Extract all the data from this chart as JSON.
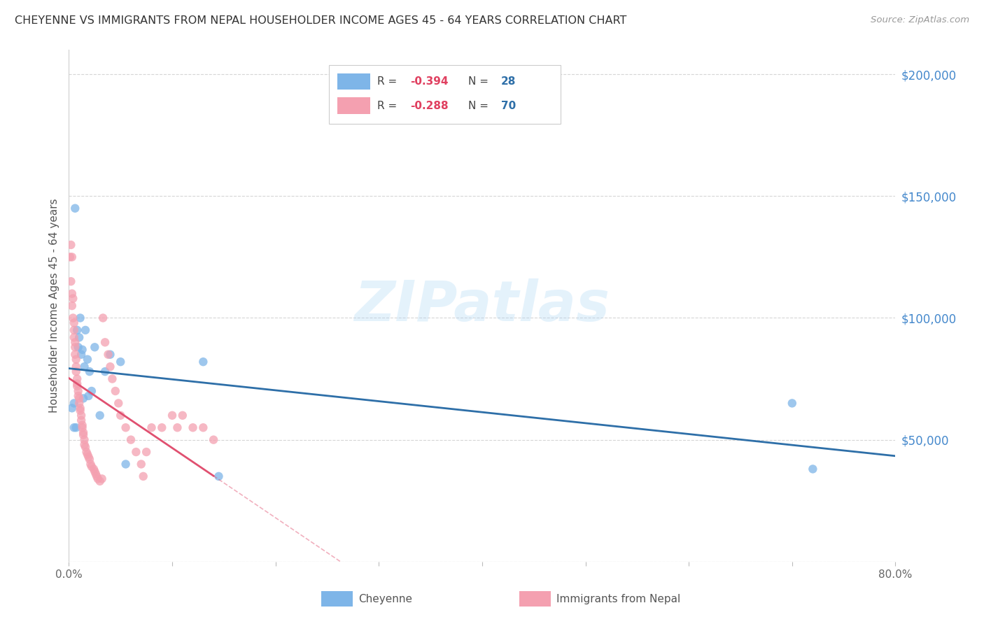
{
  "title": "CHEYENNE VS IMMIGRANTS FROM NEPAL HOUSEHOLDER INCOME AGES 45 - 64 YEARS CORRELATION CHART",
  "source": "Source: ZipAtlas.com",
  "ylabel": "Householder Income Ages 45 - 64 years",
  "watermark": "ZIPatlas",
  "xmin": 0.0,
  "xmax": 0.8,
  "ymin": 0,
  "ymax": 210000,
  "ytick_positions": [
    0,
    50000,
    100000,
    150000,
    200000
  ],
  "ytick_labels": [
    "",
    "$50,000",
    "$100,000",
    "$150,000",
    "$200,000"
  ],
  "xtick_positions": [
    0.0,
    0.1,
    0.2,
    0.3,
    0.4,
    0.5,
    0.6,
    0.7,
    0.8
  ],
  "xtick_labels": [
    "0.0%",
    "",
    "",
    "",
    "",
    "",
    "",
    "",
    "80.0%"
  ],
  "cheyenne_color": "#7EB5E8",
  "nepal_color": "#F4A0B0",
  "cheyenne_x": [
    0.003,
    0.005,
    0.005,
    0.006,
    0.007,
    0.008,
    0.009,
    0.01,
    0.011,
    0.012,
    0.013,
    0.014,
    0.015,
    0.016,
    0.018,
    0.019,
    0.02,
    0.022,
    0.025,
    0.03,
    0.035,
    0.04,
    0.05,
    0.055,
    0.13,
    0.145,
    0.7,
    0.72
  ],
  "cheyenne_y": [
    63000,
    65000,
    55000,
    145000,
    55000,
    95000,
    88000,
    92000,
    100000,
    85000,
    87000,
    67000,
    80000,
    95000,
    83000,
    68000,
    78000,
    70000,
    88000,
    60000,
    78000,
    85000,
    82000,
    40000,
    82000,
    35000,
    65000,
    38000
  ],
  "nepal_x": [
    0.001,
    0.002,
    0.002,
    0.003,
    0.003,
    0.003,
    0.004,
    0.004,
    0.005,
    0.005,
    0.005,
    0.006,
    0.006,
    0.006,
    0.007,
    0.007,
    0.007,
    0.008,
    0.008,
    0.008,
    0.009,
    0.009,
    0.01,
    0.01,
    0.011,
    0.011,
    0.012,
    0.012,
    0.013,
    0.013,
    0.014,
    0.014,
    0.015,
    0.015,
    0.016,
    0.017,
    0.018,
    0.019,
    0.02,
    0.021,
    0.022,
    0.024,
    0.025,
    0.026,
    0.027,
    0.028,
    0.03,
    0.032,
    0.033,
    0.035,
    0.038,
    0.04,
    0.042,
    0.045,
    0.048,
    0.05,
    0.055,
    0.06,
    0.065,
    0.07,
    0.072,
    0.075,
    0.08,
    0.09,
    0.1,
    0.105,
    0.11,
    0.12,
    0.13,
    0.14
  ],
  "nepal_y": [
    125000,
    130000,
    115000,
    110000,
    105000,
    125000,
    108000,
    100000,
    98000,
    95000,
    92000,
    90000,
    88000,
    85000,
    83000,
    80000,
    78000,
    75000,
    73000,
    72000,
    70000,
    68000,
    67000,
    65000,
    63000,
    62000,
    60000,
    58000,
    56000,
    55000,
    53000,
    52000,
    50000,
    48000,
    47000,
    45000,
    44000,
    43000,
    42000,
    40000,
    39000,
    38000,
    37000,
    36000,
    35000,
    34000,
    33000,
    34000,
    100000,
    90000,
    85000,
    80000,
    75000,
    70000,
    65000,
    60000,
    55000,
    50000,
    45000,
    40000,
    35000,
    45000,
    55000,
    55000,
    60000,
    55000,
    60000,
    55000,
    55000,
    50000
  ],
  "blue_line_color": "#2E6FA8",
  "pink_line_color": "#E05070",
  "grid_color": "#CCCCCC",
  "background_color": "#FFFFFF"
}
